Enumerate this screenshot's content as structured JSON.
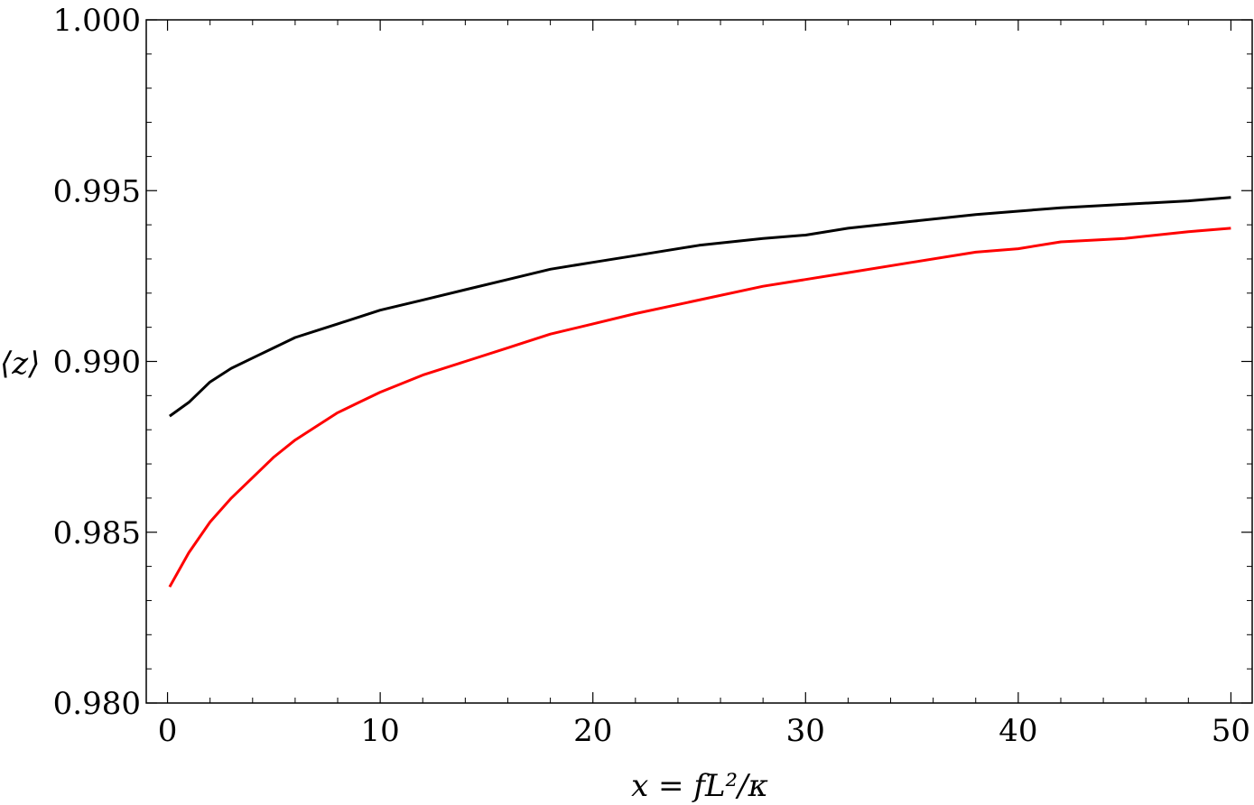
{
  "chart_data": {
    "type": "line",
    "title": "",
    "xlabel": "x = fL²/κ",
    "ylabel": "⟨z⟩",
    "xlim": [
      -1,
      51
    ],
    "ylim": [
      0.98,
      1.0
    ],
    "x_ticks": [
      0,
      10,
      20,
      30,
      40,
      50
    ],
    "x_tick_labels": [
      "0",
      "10",
      "20",
      "30",
      "40",
      "50"
    ],
    "y_ticks": [
      0.98,
      0.985,
      0.99,
      0.995,
      1.0
    ],
    "y_tick_labels": [
      "0.980",
      "0.985",
      "0.990",
      "0.995",
      "1.000"
    ],
    "x_minor_step": 2,
    "y_minor_step": 0.001,
    "grid": false,
    "legend": "none",
    "series": [
      {
        "color": "#000000",
        "x": [
          0.1,
          1,
          2,
          3,
          4,
          5,
          6,
          7,
          8,
          9,
          10,
          12,
          14,
          16,
          18,
          20,
          22,
          25,
          28,
          30,
          32,
          35,
          38,
          40,
          42,
          45,
          48,
          50
        ],
        "y": [
          0.9884,
          0.9888,
          0.9894,
          0.9898,
          0.9901,
          0.9904,
          0.9907,
          0.9909,
          0.9911,
          0.9913,
          0.9915,
          0.9918,
          0.9921,
          0.9924,
          0.9927,
          0.9929,
          0.9931,
          0.9934,
          0.9936,
          0.9937,
          0.9939,
          0.9941,
          0.9943,
          0.9944,
          0.9945,
          0.9946,
          0.9947,
          0.9948
        ]
      },
      {
        "color": "#ff0000",
        "x": [
          0.1,
          1,
          2,
          3,
          4,
          5,
          6,
          7,
          8,
          9,
          10,
          12,
          14,
          16,
          18,
          20,
          22,
          25,
          28,
          30,
          32,
          35,
          38,
          40,
          42,
          45,
          48,
          50
        ],
        "y": [
          0.9834,
          0.9844,
          0.9853,
          0.986,
          0.9866,
          0.9872,
          0.9877,
          0.9881,
          0.9885,
          0.9888,
          0.9891,
          0.9896,
          0.99,
          0.9904,
          0.9908,
          0.9911,
          0.9914,
          0.9918,
          0.9922,
          0.9924,
          0.9926,
          0.9929,
          0.9932,
          0.9933,
          0.9935,
          0.9936,
          0.9938,
          0.9939
        ]
      }
    ]
  }
}
